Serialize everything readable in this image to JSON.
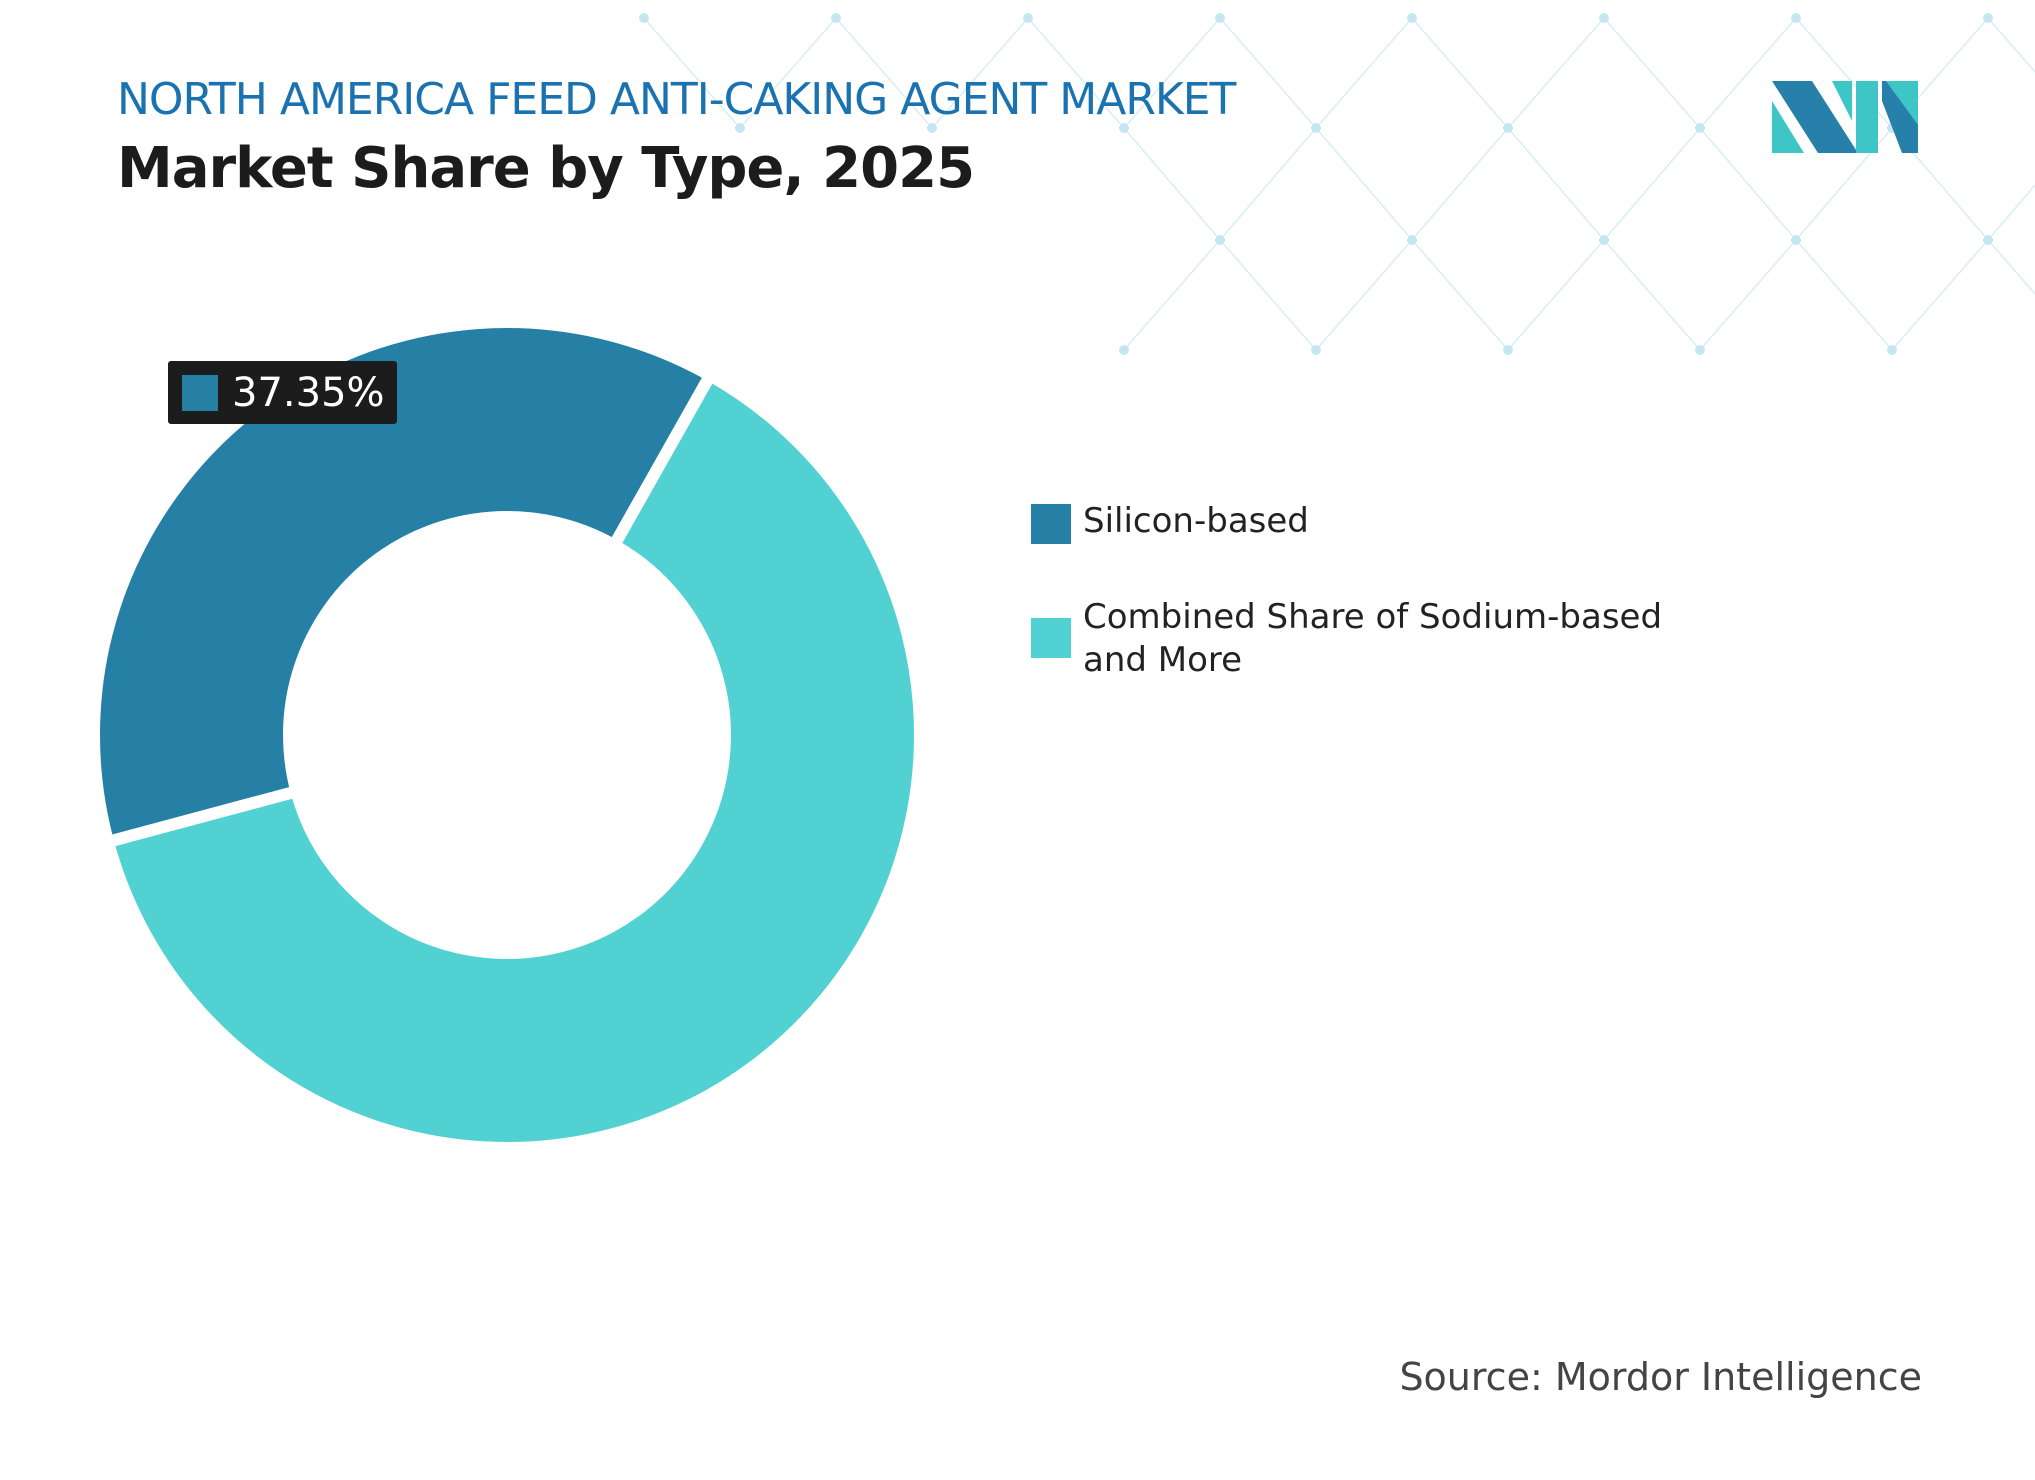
{
  "header": {
    "title": "NORTH AMERICA FEED ANTI-CAKING AGENT MARKET",
    "subtitle": "Market Share by Type, 2025"
  },
  "logo": {
    "name": "mordor-intelligence-logo",
    "colors": [
      "#2680aa",
      "#3ec6c6"
    ]
  },
  "source": "Source: Mordor Intelligence",
  "chart_data": {
    "type": "donut",
    "title": "Market Share by Type, 2025",
    "categories": [
      "Silicon-based",
      "Combined Share of Sodium-based and More"
    ],
    "values": [
      37.35,
      62.65
    ],
    "unit": "%",
    "colors": [
      "#2680a6",
      "#52d1d2"
    ],
    "data_labels": [
      "37.35%"
    ],
    "legend_position": "right"
  }
}
